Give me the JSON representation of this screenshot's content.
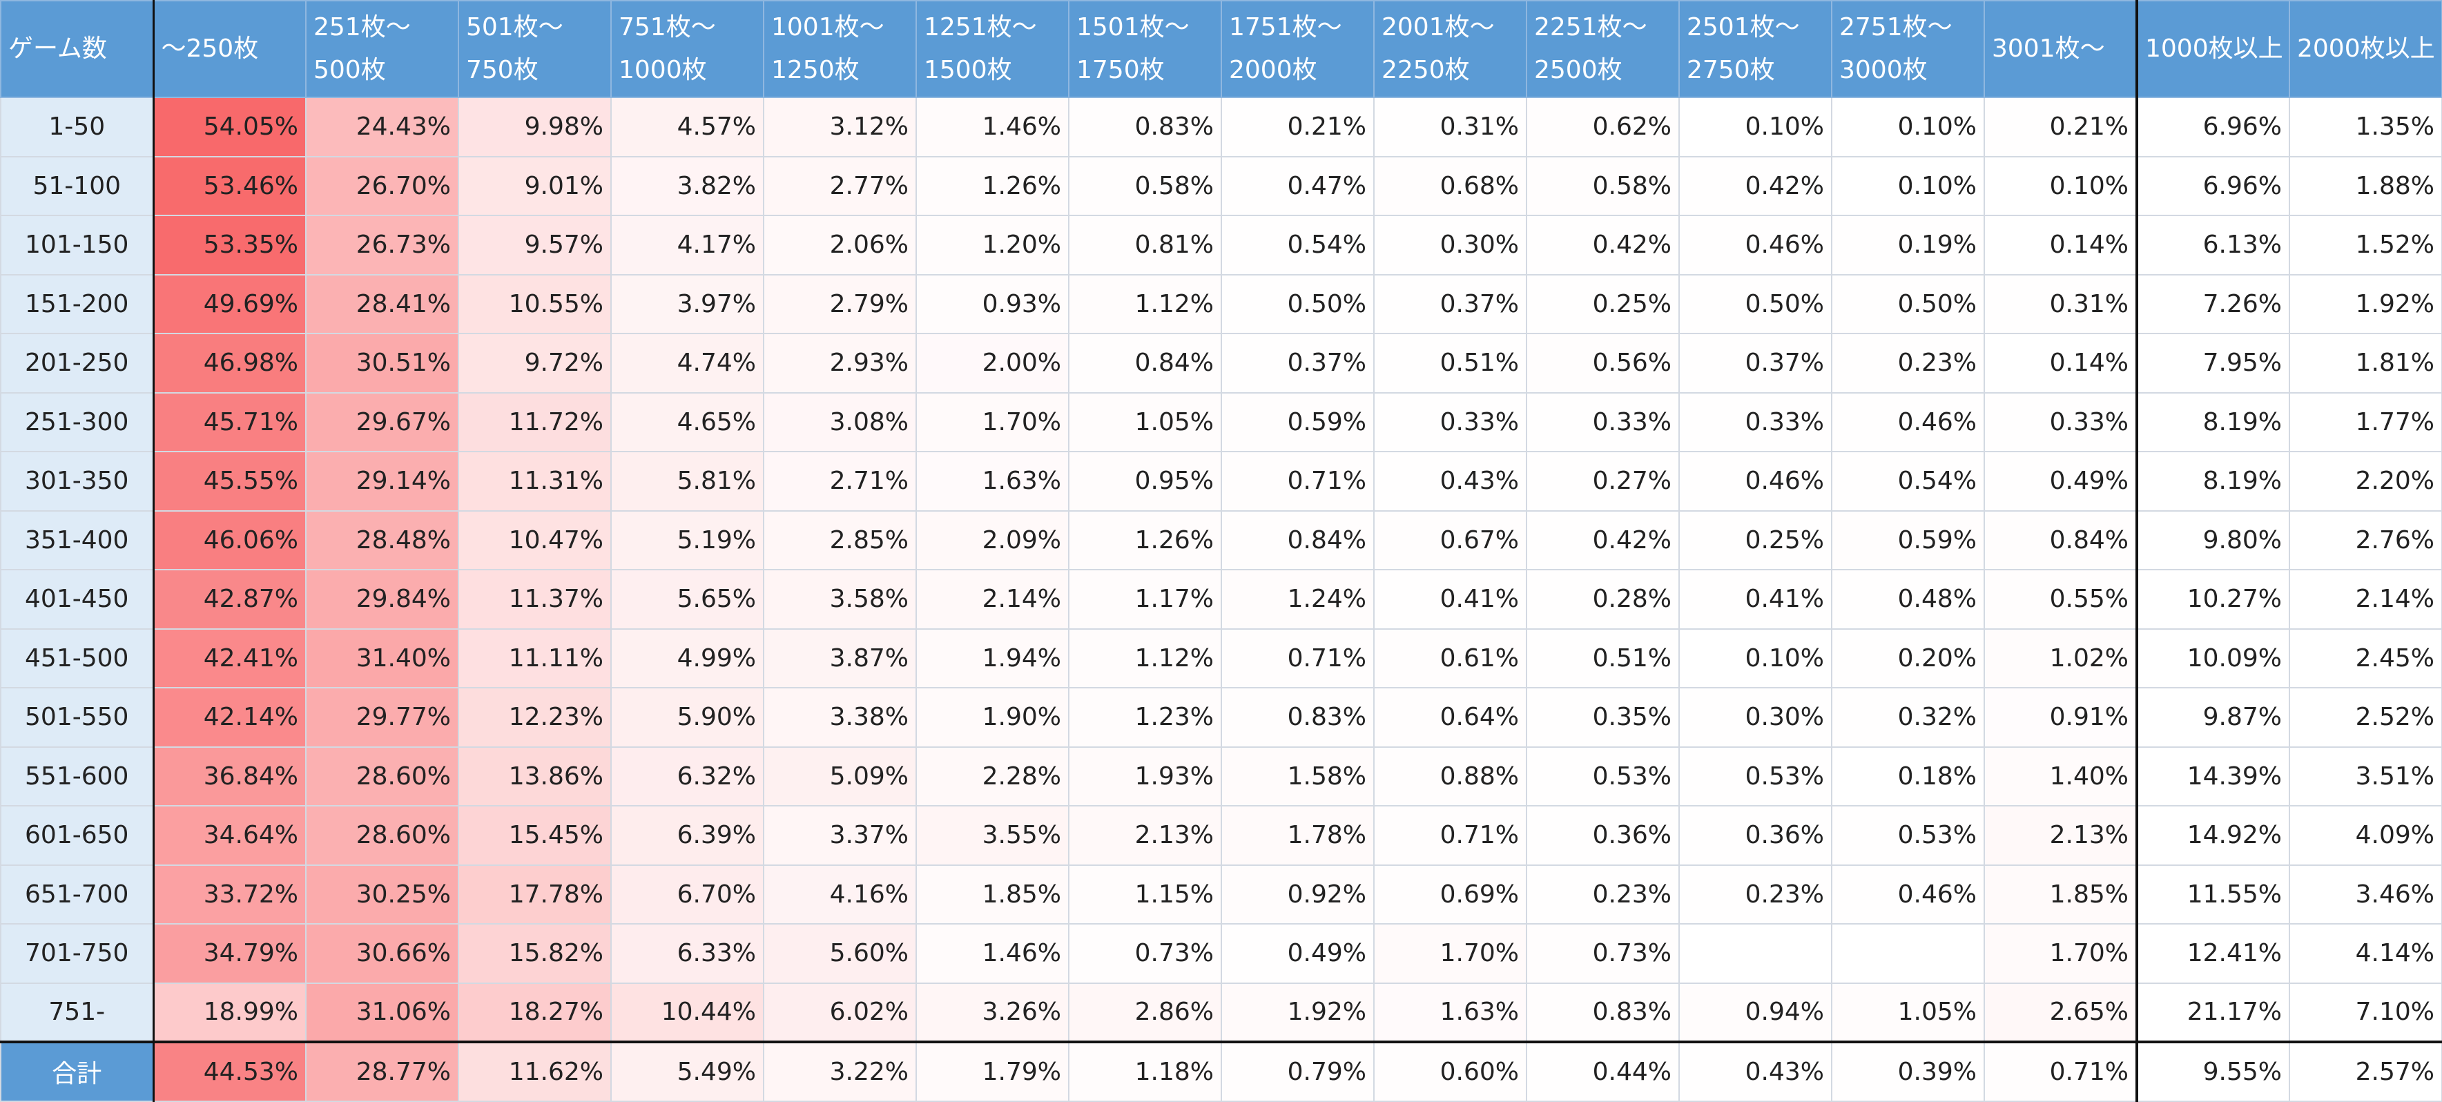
{
  "table": {
    "header": [
      [
        "ゲーム数"
      ],
      [
        "～250枚"
      ],
      [
        "251枚～",
        "500枚"
      ],
      [
        "501枚～",
        "750枚"
      ],
      [
        "751枚～",
        "1000枚"
      ],
      [
        "1001枚～",
        "1250枚"
      ],
      [
        "1251枚～",
        "1500枚"
      ],
      [
        "1501枚～",
        "1750枚"
      ],
      [
        "1751枚～",
        "2000枚"
      ],
      [
        "2001枚～",
        "2250枚"
      ],
      [
        "2251枚～",
        "2500枚"
      ],
      [
        "2501枚～",
        "2750枚"
      ],
      [
        "2751枚～",
        "3000枚"
      ],
      [
        "3001枚～"
      ],
      [
        "1000枚以上"
      ],
      [
        "2000枚以上"
      ]
    ],
    "rows": [
      [
        "1-50",
        "54.05%",
        "24.43%",
        "9.98%",
        "4.57%",
        "3.12%",
        "1.46%",
        "0.83%",
        "0.21%",
        "0.31%",
        "0.62%",
        "0.10%",
        "0.10%",
        "0.21%",
        "6.96%",
        "1.35%"
      ],
      [
        "51-100",
        "53.46%",
        "26.70%",
        "9.01%",
        "3.82%",
        "2.77%",
        "1.26%",
        "0.58%",
        "0.47%",
        "0.68%",
        "0.58%",
        "0.42%",
        "0.10%",
        "0.10%",
        "6.96%",
        "1.88%"
      ],
      [
        "101-150",
        "53.35%",
        "26.73%",
        "9.57%",
        "4.17%",
        "2.06%",
        "1.20%",
        "0.81%",
        "0.54%",
        "0.30%",
        "0.42%",
        "0.46%",
        "0.19%",
        "0.14%",
        "6.13%",
        "1.52%"
      ],
      [
        "151-200",
        "49.69%",
        "28.41%",
        "10.55%",
        "3.97%",
        "2.79%",
        "0.93%",
        "1.12%",
        "0.50%",
        "0.37%",
        "0.25%",
        "0.50%",
        "0.50%",
        "0.31%",
        "7.26%",
        "1.92%"
      ],
      [
        "201-250",
        "46.98%",
        "30.51%",
        "9.72%",
        "4.74%",
        "2.93%",
        "2.00%",
        "0.84%",
        "0.37%",
        "0.51%",
        "0.56%",
        "0.37%",
        "0.23%",
        "0.14%",
        "7.95%",
        "1.81%"
      ],
      [
        "251-300",
        "45.71%",
        "29.67%",
        "11.72%",
        "4.65%",
        "3.08%",
        "1.70%",
        "1.05%",
        "0.59%",
        "0.33%",
        "0.33%",
        "0.33%",
        "0.46%",
        "0.33%",
        "8.19%",
        "1.77%"
      ],
      [
        "301-350",
        "45.55%",
        "29.14%",
        "11.31%",
        "5.81%",
        "2.71%",
        "1.63%",
        "0.95%",
        "0.71%",
        "0.43%",
        "0.27%",
        "0.46%",
        "0.54%",
        "0.49%",
        "8.19%",
        "2.20%"
      ],
      [
        "351-400",
        "46.06%",
        "28.48%",
        "10.47%",
        "5.19%",
        "2.85%",
        "2.09%",
        "1.26%",
        "0.84%",
        "0.67%",
        "0.42%",
        "0.25%",
        "0.59%",
        "0.84%",
        "9.80%",
        "2.76%"
      ],
      [
        "401-450",
        "42.87%",
        "29.84%",
        "11.37%",
        "5.65%",
        "3.58%",
        "2.14%",
        "1.17%",
        "1.24%",
        "0.41%",
        "0.28%",
        "0.41%",
        "0.48%",
        "0.55%",
        "10.27%",
        "2.14%"
      ],
      [
        "451-500",
        "42.41%",
        "31.40%",
        "11.11%",
        "4.99%",
        "3.87%",
        "1.94%",
        "1.12%",
        "0.71%",
        "0.61%",
        "0.51%",
        "0.10%",
        "0.20%",
        "1.02%",
        "10.09%",
        "2.45%"
      ],
      [
        "501-550",
        "42.14%",
        "29.77%",
        "12.23%",
        "5.90%",
        "3.38%",
        "1.90%",
        "1.23%",
        "0.83%",
        "0.64%",
        "0.35%",
        "0.30%",
        "0.32%",
        "0.91%",
        "9.87%",
        "2.52%"
      ],
      [
        "551-600",
        "36.84%",
        "28.60%",
        "13.86%",
        "6.32%",
        "5.09%",
        "2.28%",
        "1.93%",
        "1.58%",
        "0.88%",
        "0.53%",
        "0.53%",
        "0.18%",
        "1.40%",
        "14.39%",
        "3.51%"
      ],
      [
        "601-650",
        "34.64%",
        "28.60%",
        "15.45%",
        "6.39%",
        "3.37%",
        "3.55%",
        "2.13%",
        "1.78%",
        "0.71%",
        "0.36%",
        "0.36%",
        "0.53%",
        "2.13%",
        "14.92%",
        "4.09%"
      ],
      [
        "651-700",
        "33.72%",
        "30.25%",
        "17.78%",
        "6.70%",
        "4.16%",
        "1.85%",
        "1.15%",
        "0.92%",
        "0.69%",
        "0.23%",
        "0.23%",
        "0.46%",
        "1.85%",
        "11.55%",
        "3.46%"
      ],
      [
        "701-750",
        "34.79%",
        "30.66%",
        "15.82%",
        "6.33%",
        "5.60%",
        "1.46%",
        "0.73%",
        "0.49%",
        "1.70%",
        "0.73%",
        null,
        null,
        "1.70%",
        "12.41%",
        "4.14%"
      ],
      [
        "751-",
        "18.99%",
        "31.06%",
        "18.27%",
        "10.44%",
        "6.02%",
        "3.26%",
        "2.86%",
        "1.92%",
        "1.63%",
        "0.83%",
        "0.94%",
        "1.05%",
        "2.65%",
        "21.17%",
        "7.10%"
      ]
    ],
    "total": [
      "合計",
      "44.53%",
      "28.77%",
      "11.62%",
      "5.49%",
      "3.22%",
      "1.79%",
      "1.18%",
      "0.79%",
      "0.60%",
      "0.44%",
      "0.43%",
      "0.39%",
      "0.71%",
      "9.55%",
      "2.57%"
    ]
  }
}
